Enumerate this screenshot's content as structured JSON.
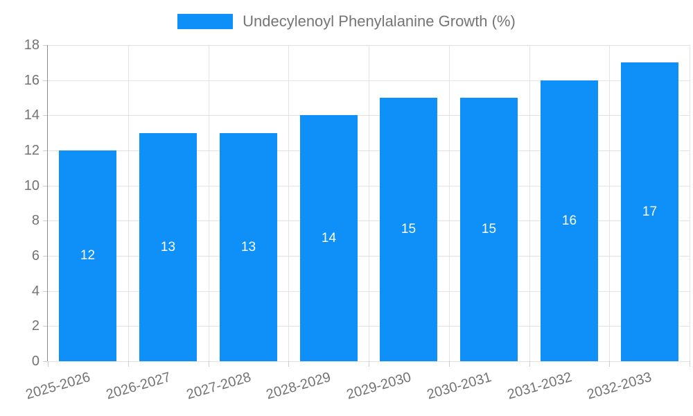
{
  "legend": {
    "label": "Undecylenoyl Phenylalanine Growth (%)"
  },
  "chart_data": {
    "type": "bar",
    "title": "",
    "xlabel": "",
    "ylabel": "",
    "categories": [
      "2025-2026",
      "2026-2027",
      "2027-2028",
      "2028-2029",
      "2029-2030",
      "2030-2031",
      "2031-2032",
      "2032-2033"
    ],
    "series": [
      {
        "name": "Undecylenoyl Phenylalanine Growth (%)",
        "values": [
          12,
          13,
          13,
          14,
          15,
          15,
          16,
          17
        ]
      }
    ],
    "value_labels_shown": true,
    "ylim": [
      0,
      18
    ],
    "yticks": [
      0,
      2,
      4,
      6,
      8,
      10,
      12,
      14,
      16,
      18
    ],
    "grid": true,
    "legend_position": "top-center",
    "x_label_rotation_deg": -16,
    "colors": {
      "bar": "#0e90f8",
      "value_label": "#ffffff",
      "axis_text": "#737373",
      "legend_text": "#757575",
      "gridline": "#e3e3e3",
      "axis_line": "#8a8a8a",
      "tick": "#cccccc",
      "background": "#ffffff"
    }
  }
}
